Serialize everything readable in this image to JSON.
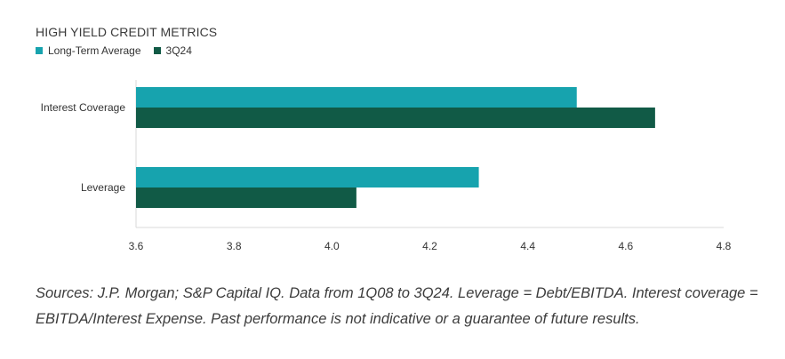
{
  "chart_data": {
    "type": "bar",
    "orientation": "horizontal",
    "title": "HIGH YIELD CREDIT METRICS",
    "categories": [
      "Interest Coverage",
      "Leverage"
    ],
    "series": [
      {
        "name": "Long-Term Average",
        "color": "#17a3ae",
        "values": [
          4.5,
          4.3
        ]
      },
      {
        "name": "3Q24",
        "color": "#115a46",
        "values": [
          4.66,
          4.05
        ]
      }
    ],
    "xlim": [
      3.6,
      4.8
    ],
    "xticks": [
      "3.6",
      "3.8",
      "4.0",
      "4.2",
      "4.4",
      "4.6",
      "4.8"
    ],
    "legend_position": "top-left",
    "grid": false
  },
  "caption": "Sources: J.P. Morgan; S&P Capital IQ. Data from 1Q08 to 3Q24. Leverage = Debt/EBITDA. Interest coverage = EBITDA/Interest Expense. Past performance is not indicative or a guarantee of future results."
}
